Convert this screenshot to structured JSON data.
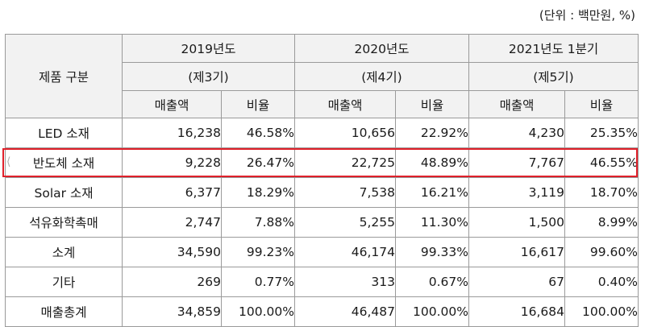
{
  "unit_note": "(단위 : 백만원, %)",
  "header": {
    "category_label": "제품 구분",
    "periods": [
      {
        "year": "2019년도",
        "term": "(제3기)"
      },
      {
        "year": "2020년도",
        "term": "(제4기)"
      },
      {
        "year": "2021년도 1분기",
        "term": "(제5기)"
      }
    ],
    "col_sales": "매출액",
    "col_ratio": "비율"
  },
  "rows": [
    {
      "category": "LED 소재",
      "values": [
        "16,238",
        "46.58%",
        "10,656",
        "22.92%",
        "4,230",
        "25.35%"
      ]
    },
    {
      "category": "반도체 소재",
      "values": [
        "9,228",
        "26.47%",
        "22,725",
        "48.89%",
        "7,767",
        "46.55%"
      ]
    },
    {
      "category": "Solar 소재",
      "values": [
        "6,377",
        "18.29%",
        "7,538",
        "16.21%",
        "3,119",
        "18.70%"
      ]
    },
    {
      "category": "석유화학촉매",
      "values": [
        "2,747",
        "7.88%",
        "5,255",
        "11.30%",
        "1,500",
        "8.99%"
      ]
    },
    {
      "category": "소계",
      "values": [
        "34,590",
        "99.23%",
        "46,174",
        "99.33%",
        "16,617",
        "99.60%"
      ]
    },
    {
      "category": "기타",
      "values": [
        "269",
        "0.77%",
        "313",
        "0.67%",
        "67",
        "0.40%"
      ]
    },
    {
      "category": "매출총계",
      "values": [
        "34,859",
        "100.00%",
        "46,487",
        "100.00%",
        "16,684",
        "100.00%"
      ]
    }
  ],
  "highlight_color": "#e0202a"
}
